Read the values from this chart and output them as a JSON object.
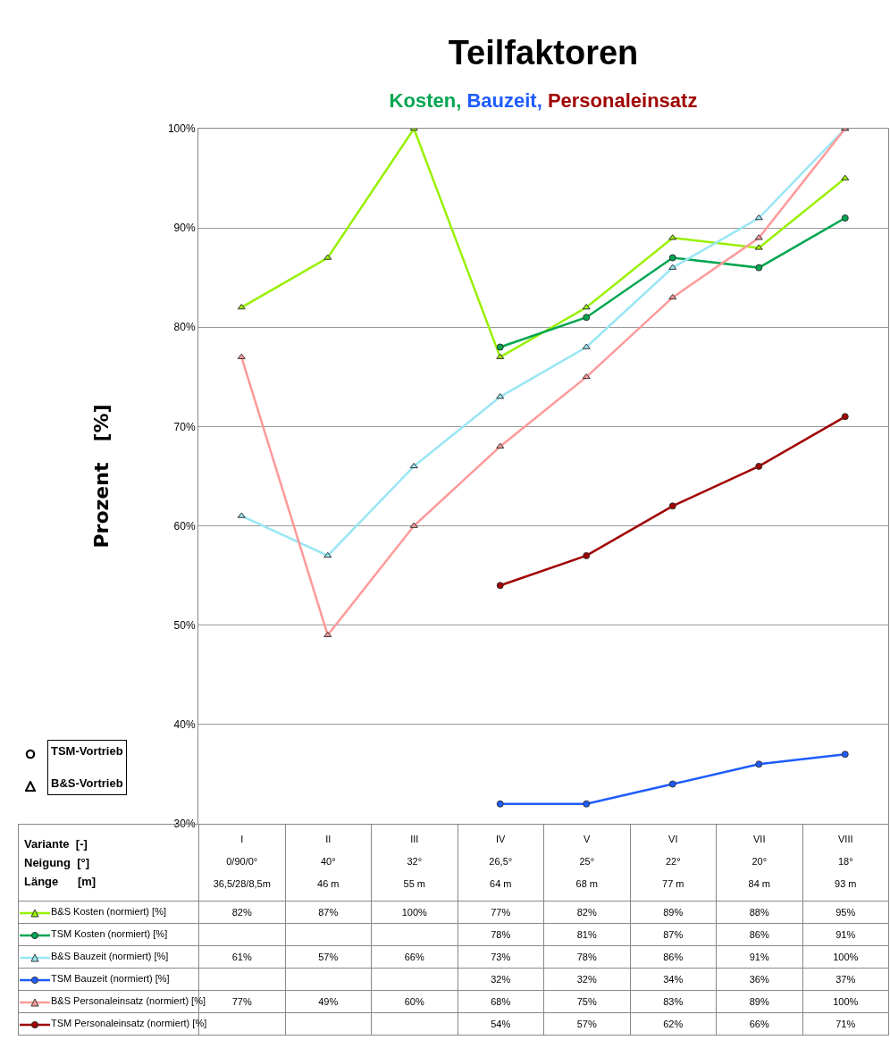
{
  "chart_data": {
    "type": "line",
    "title": "Teilfaktoren",
    "subtitle": "Kosten, Bauzeit, Personaleinsatz",
    "ylabel": "Prozent   [%]",
    "categories": [
      "I\n0/90/0°\n36,5/28/8,5m",
      "II\n40°\n46 m",
      "III\n32°\n55 m",
      "IV\n26,5°\n64 m",
      "V\n25°\n68 m",
      "VI\n22°\n77 m",
      "VII\n20°\n84 m",
      "VIII\n18°\n93 m"
    ],
    "series": [
      {
        "name": "B&S Kosten (normiert) [%]",
        "color": "#99f000",
        "marker": "triangle",
        "values": [
          82,
          87,
          100,
          77,
          82,
          89,
          88,
          95
        ],
        "value_labels": [
          "82%",
          "87%",
          "100%",
          "77%",
          "82%",
          "89%",
          "88%",
          "95%"
        ]
      },
      {
        "name": "TSM Kosten (normiert) [%]",
        "color": "#00a650",
        "marker": "circle",
        "values": [
          null,
          null,
          null,
          78,
          81,
          87,
          86,
          91
        ],
        "value_labels": [
          null,
          null,
          null,
          "78%",
          "81%",
          "87%",
          "86%",
          "91%"
        ]
      },
      {
        "name": "B&S Bauzeit (normiert) [%]",
        "color": "#99e6f5",
        "marker": "triangle",
        "values": [
          61,
          57,
          66,
          73,
          78,
          86,
          91,
          100
        ],
        "value_labels": [
          "61%",
          "57%",
          "66%",
          "73%",
          "78%",
          "86%",
          "91%",
          "100%"
        ]
      },
      {
        "name": "TSM Bauzeit (normiert) [%]",
        "color": "#1f5cff",
        "marker": "circle",
        "values": [
          null,
          null,
          null,
          32,
          32,
          34,
          36,
          37
        ],
        "value_labels": [
          null,
          null,
          null,
          "32%",
          "32%",
          "34%",
          "36%",
          "37%"
        ]
      },
      {
        "name": "B&S Personaleinsatz (normiert) [%]",
        "color": "#ff9999",
        "marker": "triangle",
        "values": [
          77,
          49,
          60,
          68,
          75,
          83,
          89,
          100
        ],
        "value_labels": [
          "77%",
          "49%",
          "60%",
          "68%",
          "75%",
          "83%",
          "89%",
          "100%"
        ]
      },
      {
        "name": "TSM Personaleinsatz (normiert) [%]",
        "color": "#a00000",
        "marker": "circle",
        "values": [
          null,
          null,
          null,
          54,
          57,
          62,
          66,
          71
        ],
        "value_labels": [
          null,
          null,
          null,
          "54%",
          "57%",
          "62%",
          "66%",
          "71%"
        ]
      }
    ],
    "ylim": [
      30,
      100
    ],
    "yticks": [
      {
        "value": 30,
        "label": "30%"
      },
      {
        "value": 40,
        "label": "40%"
      },
      {
        "value": 50,
        "label": "50%"
      },
      {
        "value": 60,
        "label": "60%"
      },
      {
        "value": 70,
        "label": "70%"
      },
      {
        "value": 80,
        "label": "80%"
      },
      {
        "value": 90,
        "label": "90%"
      },
      {
        "value": 100,
        "label": "100%"
      }
    ],
    "grid": "y",
    "tick_labels": "y",
    "legend": "bottom",
    "annotations": [
      "Variante  [-]\nNeigung  [°]\nLänge      [m]",
      "TSM-Vortrieb",
      "B&S-Vortrieb"
    ]
  }
}
